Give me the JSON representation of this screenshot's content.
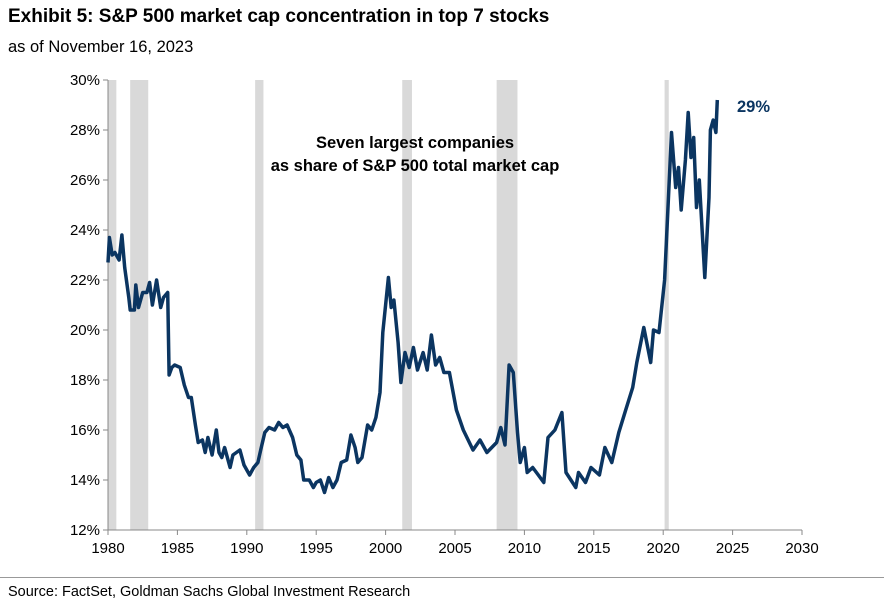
{
  "title": "Exhibit 5: S&P 500 market cap concentration in top 7 stocks",
  "subtitle": "as of November 16, 2023",
  "source": "Source: FactSet, Goldman Sachs Global Investment Research",
  "chart_data": {
    "type": "line",
    "annotation": [
      "Seven largest companies",
      "as share of S&P 500 total market cap"
    ],
    "end_label": "29%",
    "xlim": [
      1980,
      2030
    ],
    "ylim": [
      12,
      30
    ],
    "x_ticks": [
      "1980",
      "1985",
      "1990",
      "1995",
      "2000",
      "2005",
      "2010",
      "2015",
      "2020",
      "2025",
      "2030"
    ],
    "y_ticks": [
      "12%",
      "14%",
      "16%",
      "18%",
      "20%",
      "22%",
      "24%",
      "26%",
      "28%",
      "30%"
    ],
    "grid": false,
    "line_color": "#0b3561",
    "recession_color": "#d9d9d9",
    "recessions": [
      [
        1980.0,
        1980.6
      ],
      [
        1981.6,
        1982.9
      ],
      [
        1990.6,
        1991.2
      ],
      [
        2001.2,
        2001.9
      ],
      [
        2008.0,
        2009.5
      ],
      [
        2020.1,
        2020.4
      ]
    ],
    "series": [
      {
        "x": [
          1980.0,
          1980.1,
          1980.3,
          1980.5,
          1980.8,
          1981.0,
          1981.2,
          1981.5,
          1981.6,
          1981.9,
          1982.0,
          1982.2,
          1982.5,
          1982.8,
          1983.0,
          1983.2,
          1983.5,
          1983.8,
          1984.0,
          1984.3,
          1984.4,
          1984.6,
          1984.8,
          1985.2,
          1985.5,
          1985.8,
          1986.0,
          1986.3,
          1986.5,
          1986.8,
          1987.0,
          1987.2,
          1987.5,
          1987.8,
          1988.0,
          1988.2,
          1988.4,
          1988.8,
          1989.0,
          1989.5,
          1989.8,
          1990.2,
          1990.5,
          1990.8,
          1991.0,
          1991.3,
          1991.6,
          1992.0,
          1992.3,
          1992.6,
          1992.9,
          1993.3,
          1993.6,
          1993.9,
          1994.1,
          1994.5,
          1994.8,
          1995.0,
          1995.3,
          1995.6,
          1995.9,
          1996.2,
          1996.5,
          1996.8,
          1997.2,
          1997.5,
          1997.8,
          1998.0,
          1998.3,
          1998.7,
          1999.0,
          1999.3,
          1999.6,
          1999.8,
          2000.0,
          2000.2,
          2000.4,
          2000.6,
          2000.9,
          2001.1,
          2001.4,
          2001.7,
          2002.0,
          2002.3,
          2002.7,
          2003.0,
          2003.3,
          2003.6,
          2003.9,
          2004.2,
          2004.6,
          2005.1,
          2005.6,
          2006.3,
          2006.8,
          2007.3,
          2008.0,
          2008.3,
          2008.6,
          2008.9,
          2009.2,
          2009.5,
          2009.7,
          2010.0,
          2010.2,
          2010.6,
          2011.0,
          2011.4,
          2011.7,
          2012.2,
          2012.7,
          2013.0,
          2013.7,
          2013.9,
          2014.4,
          2014.8,
          2015.4,
          2015.8,
          2016.3,
          2016.8,
          2017.3,
          2017.8,
          2018.1,
          2018.6,
          2019.1,
          2019.3,
          2019.7,
          2020.1,
          2020.3,
          2020.6,
          2020.9,
          2021.1,
          2021.3,
          2021.6,
          2021.8,
          2022.0,
          2022.2,
          2022.4,
          2022.6,
          2023.0,
          2023.3,
          2023.4,
          2023.6,
          2023.8,
          2023.9
        ],
        "y": [
          22.7,
          23.7,
          23.0,
          23.1,
          22.8,
          23.8,
          22.5,
          21.3,
          20.8,
          20.8,
          21.8,
          20.9,
          21.5,
          21.5,
          21.9,
          21.0,
          22.0,
          20.9,
          21.3,
          21.5,
          18.2,
          18.5,
          18.6,
          18.5,
          17.8,
          17.3,
          17.3,
          16.2,
          15.5,
          15.6,
          15.1,
          15.7,
          15.0,
          16.0,
          15.1,
          14.9,
          15.3,
          14.5,
          15.0,
          15.2,
          14.6,
          14.2,
          14.5,
          14.7,
          15.2,
          15.9,
          16.1,
          16.0,
          16.3,
          16.1,
          16.2,
          15.7,
          15.0,
          14.8,
          14.0,
          14.0,
          13.7,
          13.9,
          14.0,
          13.5,
          14.1,
          13.7,
          14.0,
          14.7,
          14.8,
          15.8,
          15.3,
          14.7,
          14.9,
          16.2,
          16.0,
          16.5,
          17.5,
          19.9,
          21.0,
          22.1,
          20.9,
          21.2,
          19.5,
          17.9,
          19.1,
          18.5,
          19.3,
          18.4,
          19.1,
          18.4,
          19.8,
          18.6,
          18.9,
          18.3,
          18.3,
          16.8,
          16.0,
          15.2,
          15.6,
          15.1,
          15.5,
          16.1,
          15.4,
          18.6,
          18.3,
          15.9,
          14.7,
          15.3,
          14.3,
          14.5,
          14.2,
          13.9,
          15.7,
          16.0,
          16.7,
          14.3,
          13.7,
          14.3,
          13.9,
          14.5,
          14.2,
          15.3,
          14.7,
          15.9,
          16.8,
          17.7,
          18.7,
          20.1,
          18.7,
          20.0,
          19.9,
          22.0,
          24.4,
          27.9,
          25.7,
          26.5,
          24.8,
          26.8,
          28.7,
          26.9,
          27.7,
          24.9,
          26.0,
          22.1,
          25.3,
          28.0,
          28.4,
          27.9,
          29.2
        ]
      }
    ]
  }
}
